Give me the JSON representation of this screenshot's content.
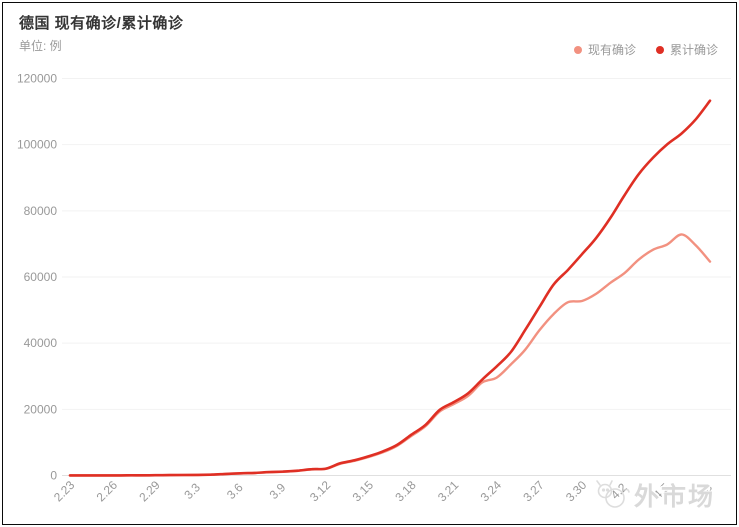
{
  "header": {
    "title": "德国 现有确诊/累计确诊",
    "unit": "单位: 例"
  },
  "legend": {
    "items": [
      {
        "label": "现有确诊",
        "color": "#f29180"
      },
      {
        "label": "累计确诊",
        "color": "#df2f24"
      }
    ]
  },
  "watermark": {
    "text": "外市场",
    "logo": "mascot-logo-icon"
  },
  "colors": {
    "grid": "#f2f2f2",
    "axis_line": "#e0e0e0",
    "tick_text": "#999999",
    "title_text": "#353535"
  },
  "chart_data": {
    "type": "line",
    "title": "德国 现有确诊/累计确诊",
    "ylabel": "例",
    "xlabel": "",
    "ylim": [
      0,
      120000
    ],
    "yticks": [
      0,
      20000,
      40000,
      60000,
      80000,
      100000,
      120000
    ],
    "x_tick_every": 3,
    "grid": true,
    "smooth": true,
    "legend_position": "top-right",
    "x": [
      "2.23",
      "2.24",
      "2.25",
      "2.26",
      "2.27",
      "2.28",
      "2.29",
      "3.1",
      "3.2",
      "3.3",
      "3.4",
      "3.5",
      "3.6",
      "3.7",
      "3.8",
      "3.9",
      "3.10",
      "3.11",
      "3.12",
      "3.13",
      "3.14",
      "3.15",
      "3.16",
      "3.17",
      "3.18",
      "3.19",
      "3.20",
      "3.21",
      "3.22",
      "3.23",
      "3.24",
      "3.25",
      "3.26",
      "3.27",
      "3.28",
      "3.29",
      "3.30",
      "3.31",
      "4.1",
      "4.2",
      "4.3",
      "4.4",
      "4.5",
      "4.6",
      "4.7",
      "4.8"
    ],
    "series": [
      {
        "name": "现有确诊",
        "color": "#f29180",
        "values": [
          16,
          16,
          16,
          26,
          44,
          45,
          74,
          114,
          143,
          178,
          244,
          460,
          643,
          764,
          1000,
          1130,
          1405,
          1847,
          2016,
          3547,
          4435,
          5591,
          7002,
          8977,
          11953,
          14935,
          19380,
          21603,
          24078,
          28161,
          29586,
          33570,
          37998,
          43871,
          48781,
          52351,
          52740,
          54933,
          58241,
          61247,
          65309,
          68248,
          69839,
          72864,
          69566,
          64647
        ]
      },
      {
        "name": "累计确诊",
        "color": "#df2f24",
        "values": [
          16,
          16,
          17,
          27,
          46,
          48,
          79,
          130,
          159,
          196,
          262,
          482,
          670,
          799,
          1040,
          1176,
          1457,
          1908,
          2078,
          3675,
          4585,
          5795,
          7272,
          9257,
          12327,
          15320,
          19848,
          22213,
          24873,
          29056,
          32986,
          37323,
          43938,
          50871,
          57695,
          62095,
          66885,
          71808,
          77872,
          84794,
          91159,
          96092,
          100123,
          103374,
          107663,
          113296
        ]
      }
    ]
  }
}
